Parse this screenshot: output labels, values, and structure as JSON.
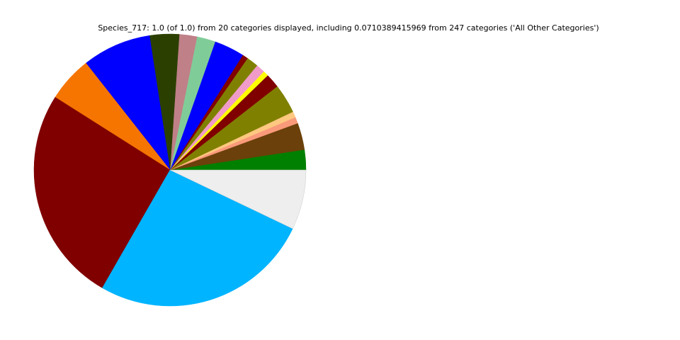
{
  "chart_data": {
    "type": "pie",
    "title": "Species_717: 1.0 (of 1.0) from 20 categories displayed, including 0.0710389415969 from 247 categories ('All Other Categories')",
    "start_angle_deg": 0,
    "direction": "counterclockwise",
    "legend": "none",
    "values": [
      0.024,
      0.032,
      0.0075,
      0.007,
      0.011,
      0.024,
      0.017,
      0.0064,
      0.0106,
      0.014,
      0.0067,
      0.036,
      0.022,
      0.021,
      0.035,
      0.082,
      0.054,
      0.257,
      0.262,
      0.071
    ],
    "colors": [
      "#008000",
      "#6b400a",
      "#fa9a7a",
      "#ffc880",
      "#808000",
      "#808000",
      "#800000",
      "#ffff00",
      "#f09bc8",
      "#808000",
      "#800000",
      "#0000ff",
      "#80cc99",
      "#c08088",
      "#2b4000",
      "#0000ff",
      "#f57500",
      "#800000",
      "#00b4ff",
      "#eeeeee"
    ]
  }
}
